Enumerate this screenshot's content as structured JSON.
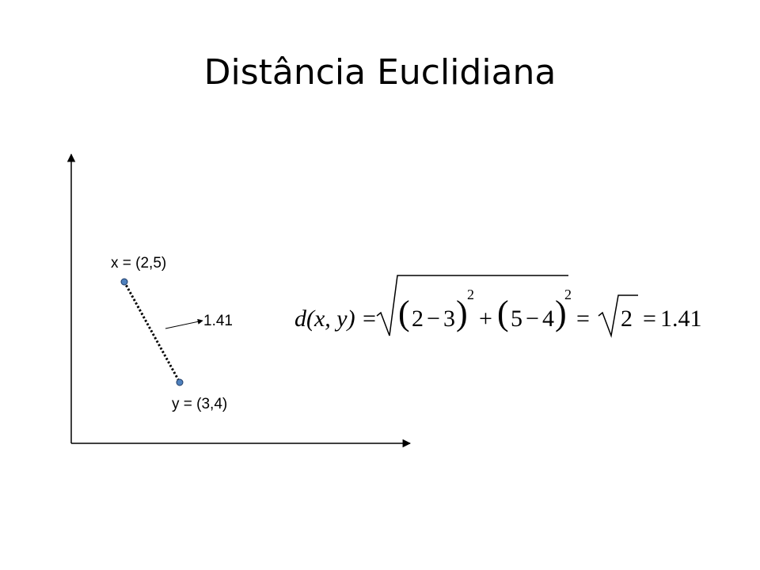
{
  "title": "Distância Euclidiana",
  "points": {
    "x": {
      "label": "x = (2,5)"
    },
    "y": {
      "label": "y = (3,4)"
    }
  },
  "distance_label": "1.41",
  "formula": {
    "lhs": "d(x, y) =",
    "t1_open": "(",
    "t1_a": "2",
    "t1_minus": "−",
    "t1_b": "3",
    "t1_close": ")",
    "t1_exp": "2",
    "plus": "+",
    "t2_open": "(",
    "t2_a": "5",
    "t2_minus": "−",
    "t2_b": "4",
    "t2_close": ")",
    "t2_exp": "2",
    "eq2": "=",
    "rad_value": "2",
    "eq3": "=",
    "result": "1.41"
  },
  "colors": {
    "point_fill": "#4f81bd",
    "point_stroke": "#1f3b66",
    "line": "#000000"
  }
}
